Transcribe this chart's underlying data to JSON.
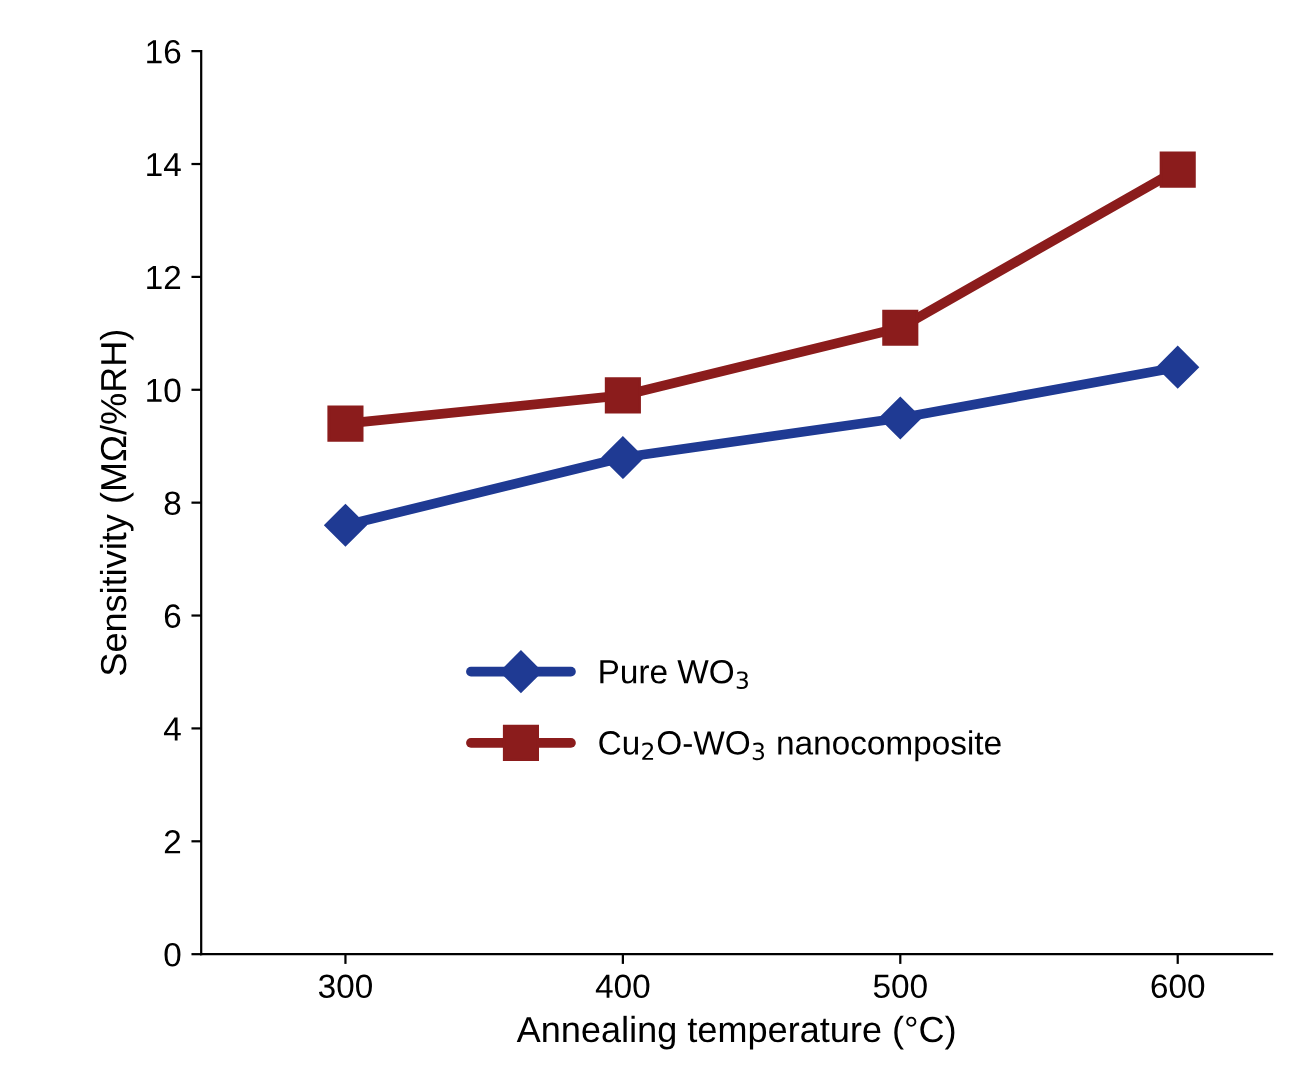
{
  "chart_data": {
    "type": "line",
    "xlabel": "Annealing temperature (°C)",
    "ylabel": "Sensitivity (MΩ/%RH)",
    "x": [
      300,
      400,
      500,
      600
    ],
    "series": [
      {
        "name": "Pure WO$_{3}$",
        "color": "#1f3a93",
        "marker": "diamond",
        "values": [
          7.6,
          8.8,
          9.5,
          10.4
        ]
      },
      {
        "name": "Cu$_{2}$O-WO$_{3}$ nanocomposite",
        "color": "#8b1c1c",
        "marker": "square",
        "values": [
          9.4,
          9.9,
          11.1,
          13.9
        ]
      }
    ],
    "xlim": [
      248,
      634
    ],
    "xticks": [
      300,
      400,
      500,
      600
    ],
    "ylim": [
      0,
      16
    ],
    "yticks": [
      0,
      2,
      4,
      6,
      8,
      10,
      12,
      14,
      16
    ],
    "grid": false,
    "legend": "bottom",
    "line_style": "solid"
  }
}
